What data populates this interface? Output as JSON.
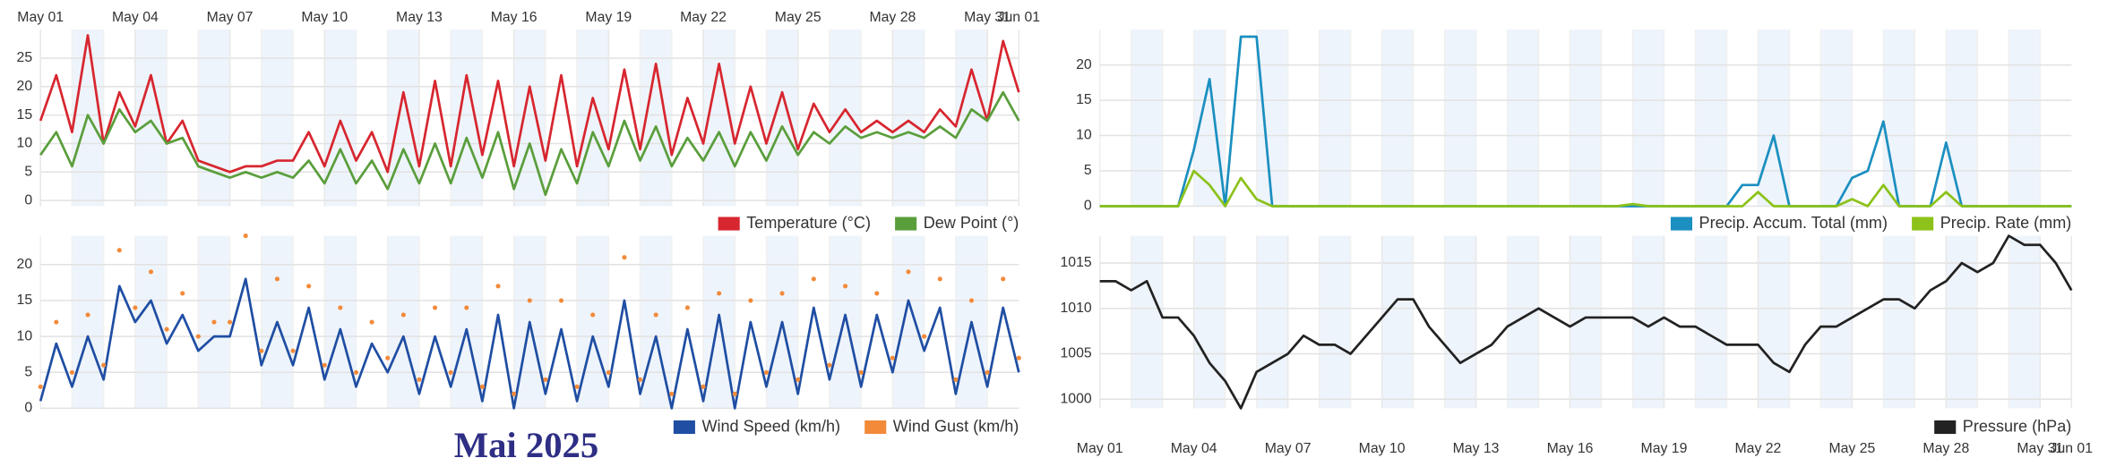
{
  "title": "Mai 2025",
  "chart_data": [
    {
      "type": "line",
      "xlim": [
        0,
        31
      ],
      "ylim": [
        -1,
        30
      ],
      "yticks": [
        0,
        5,
        10,
        15,
        20,
        25
      ],
      "grid": true,
      "xticks": [
        {
          "value": 0,
          "label": "May 01"
        },
        {
          "value": 3,
          "label": "May 04"
        },
        {
          "value": 6,
          "label": "May 07"
        },
        {
          "value": 9,
          "label": "May 10"
        },
        {
          "value": 12,
          "label": "May 13"
        },
        {
          "value": 15,
          "label": "May 16"
        },
        {
          "value": 18,
          "label": "May 19"
        },
        {
          "value": 21,
          "label": "May 22"
        },
        {
          "value": 24,
          "label": "May 25"
        },
        {
          "value": 27,
          "label": "May 28"
        },
        {
          "value": 30,
          "label": "May 31"
        },
        {
          "value": 31,
          "label": "Jun 01"
        }
      ],
      "x": [
        0,
        0.5,
        1,
        1.5,
        2,
        2.5,
        3,
        3.5,
        4,
        4.5,
        5,
        5.5,
        6,
        6.5,
        7,
        7.5,
        8,
        8.5,
        9,
        9.5,
        10,
        10.5,
        11,
        11.5,
        12,
        12.5,
        13,
        13.5,
        14,
        14.5,
        15,
        15.5,
        16,
        16.5,
        17,
        17.5,
        18,
        18.5,
        19,
        19.5,
        20,
        20.5,
        21,
        21.5,
        22,
        22.5,
        23,
        23.5,
        24,
        24.5,
        25,
        25.5,
        26,
        26.5,
        27,
        27.5,
        28,
        28.5,
        29,
        29.5,
        30,
        30.5,
        31
      ],
      "series": [
        {
          "name": "Temperature (°C)",
          "color": "#d7262f",
          "values": [
            14,
            22,
            12,
            29,
            10,
            19,
            13,
            22,
            10,
            14,
            7,
            6,
            5,
            6,
            6,
            7,
            7,
            12,
            6,
            14,
            7,
            12,
            5,
            19,
            6,
            21,
            6,
            22,
            8,
            21,
            6,
            20,
            7,
            22,
            6,
            18,
            9,
            23,
            9,
            24,
            8,
            18,
            10,
            24,
            10,
            20,
            10,
            19,
            9,
            17,
            12,
            16,
            12,
            14,
            12,
            14,
            12,
            16,
            13,
            23,
            14,
            28,
            19
          ]
        },
        {
          "name": "Dew Point (°)",
          "color": "#5a9e3c",
          "values": [
            8,
            12,
            6,
            15,
            10,
            16,
            12,
            14,
            10,
            11,
            6,
            5,
            4,
            5,
            4,
            5,
            4,
            7,
            3,
            9,
            3,
            7,
            2,
            9,
            3,
            10,
            3,
            11,
            4,
            12,
            2,
            10,
            1,
            9,
            3,
            12,
            6,
            14,
            7,
            13,
            6,
            11,
            7,
            12,
            6,
            12,
            7,
            13,
            8,
            12,
            10,
            13,
            11,
            12,
            11,
            12,
            11,
            13,
            11,
            16,
            14,
            19,
            14
          ]
        }
      ]
    },
    {
      "type": "line",
      "xlim": [
        0,
        31
      ],
      "ylim": [
        0,
        24
      ],
      "yticks": [
        0,
        5,
        10,
        15,
        20
      ],
      "grid": true,
      "x": [
        0,
        0.5,
        1,
        1.5,
        2,
        2.5,
        3,
        3.5,
        4,
        4.5,
        5,
        5.5,
        6,
        6.5,
        7,
        7.5,
        8,
        8.5,
        9,
        9.5,
        10,
        10.5,
        11,
        11.5,
        12,
        12.5,
        13,
        13.5,
        14,
        14.5,
        15,
        15.5,
        16,
        16.5,
        17,
        17.5,
        18,
        18.5,
        19,
        19.5,
        20,
        20.5,
        21,
        21.5,
        22,
        22.5,
        23,
        23.5,
        24,
        24.5,
        25,
        25.5,
        26,
        26.5,
        27,
        27.5,
        28,
        28.5,
        29,
        29.5,
        30,
        30.5,
        31
      ],
      "series": [
        {
          "name": "Wind Speed (km/h)",
          "color": "#1f4ea3",
          "values": [
            1,
            9,
            3,
            10,
            4,
            17,
            12,
            15,
            9,
            13,
            8,
            10,
            10,
            18,
            6,
            12,
            6,
            14,
            4,
            11,
            3,
            9,
            5,
            10,
            2,
            10,
            3,
            11,
            1,
            13,
            0,
            12,
            2,
            11,
            1,
            10,
            3,
            15,
            2,
            10,
            0,
            11,
            1,
            13,
            0,
            12,
            3,
            12,
            2,
            14,
            4,
            13,
            3,
            13,
            5,
            15,
            8,
            14,
            2,
            12,
            3,
            14,
            5
          ]
        },
        {
          "name": "Wind Gust (km/h)",
          "color": "#f28a3a",
          "style": "scatter",
          "values": [
            3,
            12,
            5,
            13,
            6,
            22,
            14,
            19,
            11,
            16,
            10,
            12,
            12,
            24,
            8,
            18,
            8,
            17,
            6,
            14,
            5,
            12,
            7,
            13,
            4,
            14,
            5,
            14,
            3,
            17,
            2,
            15,
            4,
            15,
            3,
            13,
            5,
            21,
            4,
            13,
            2,
            14,
            3,
            16,
            2,
            15,
            5,
            16,
            4,
            18,
            6,
            17,
            5,
            16,
            7,
            19,
            10,
            18,
            4,
            15,
            5,
            18,
            7
          ]
        }
      ]
    },
    {
      "type": "line",
      "xlim": [
        0,
        31
      ],
      "ylim": [
        0,
        25
      ],
      "yticks": [
        0,
        5,
        10,
        15,
        20
      ],
      "grid": true,
      "x": [
        0,
        0.5,
        1,
        1.5,
        2,
        2.5,
        3,
        3.5,
        4,
        4.5,
        5,
        5.5,
        6,
        6.5,
        7,
        7.5,
        8,
        8.5,
        9,
        9.5,
        10,
        10.5,
        11,
        11.5,
        12,
        12.5,
        13,
        13.5,
        14,
        14.5,
        15,
        15.5,
        16,
        16.5,
        17,
        17.5,
        18,
        18.5,
        19,
        19.5,
        20,
        20.5,
        21,
        21.5,
        22,
        22.5,
        23,
        23.5,
        24,
        24.5,
        25,
        25.5,
        26,
        26.5,
        27,
        27.5,
        28,
        28.5,
        29,
        29.5,
        30,
        30.5,
        31
      ],
      "series": [
        {
          "name": "Precip. Accum. Total (mm)",
          "color": "#1b8fc0",
          "values": [
            0,
            0,
            0,
            0,
            0,
            0,
            8,
            18,
            0,
            24,
            24,
            0,
            0,
            0,
            0,
            0,
            0,
            0,
            0,
            0,
            0,
            0,
            0,
            0,
            0,
            0,
            0,
            0,
            0,
            0,
            0,
            0,
            0,
            0,
            0,
            0,
            0,
            0,
            0,
            0,
            0,
            3,
            3,
            10,
            0,
            0,
            0,
            0,
            4,
            5,
            12,
            0,
            0,
            0,
            9,
            0,
            0,
            0,
            0,
            0,
            0,
            0,
            0
          ]
        },
        {
          "name": "Precip. Rate (mm)",
          "color": "#8cc21a",
          "values": [
            0,
            0,
            0,
            0,
            0,
            0,
            5,
            3,
            0,
            4,
            1,
            0,
            0,
            0,
            0,
            0,
            0,
            0,
            0,
            0,
            0,
            0,
            0,
            0,
            0,
            0,
            0,
            0,
            0,
            0,
            0,
            0,
            0,
            0,
            0.3,
            0,
            0,
            0,
            0,
            0,
            0,
            0,
            2,
            0,
            0,
            0,
            0,
            0,
            1,
            0,
            3,
            0,
            0,
            0,
            2,
            0,
            0,
            0,
            0,
            0,
            0,
            0,
            0
          ]
        }
      ]
    },
    {
      "type": "line",
      "xlim": [
        0,
        31
      ],
      "ylim": [
        999,
        1018
      ],
      "yticks": [
        1000,
        1005,
        1010,
        1015
      ],
      "grid": true,
      "xticks": [
        {
          "value": 0,
          "label": "May 01"
        },
        {
          "value": 3,
          "label": "May 04"
        },
        {
          "value": 6,
          "label": "May 07"
        },
        {
          "value": 9,
          "label": "May 10"
        },
        {
          "value": 12,
          "label": "May 13"
        },
        {
          "value": 15,
          "label": "May 16"
        },
        {
          "value": 18,
          "label": "May 19"
        },
        {
          "value": 21,
          "label": "May 22"
        },
        {
          "value": 24,
          "label": "May 25"
        },
        {
          "value": 27,
          "label": "May 28"
        },
        {
          "value": 30,
          "label": "May 31"
        },
        {
          "value": 31,
          "label": "Jun 01"
        }
      ],
      "x": [
        0,
        0.5,
        1,
        1.5,
        2,
        2.5,
        3,
        3.5,
        4,
        4.5,
        5,
        5.5,
        6,
        6.5,
        7,
        7.5,
        8,
        8.5,
        9,
        9.5,
        10,
        10.5,
        11,
        11.5,
        12,
        12.5,
        13,
        13.5,
        14,
        14.5,
        15,
        15.5,
        16,
        16.5,
        17,
        17.5,
        18,
        18.5,
        19,
        19.5,
        20,
        20.5,
        21,
        21.5,
        22,
        22.5,
        23,
        23.5,
        24,
        24.5,
        25,
        25.5,
        26,
        26.5,
        27,
        27.5,
        28,
        28.5,
        29,
        29.5,
        30,
        30.5,
        31
      ],
      "series": [
        {
          "name": "Pressure (hPa)",
          "color": "#222222",
          "values": [
            1013,
            1013,
            1012,
            1013,
            1009,
            1009,
            1007,
            1004,
            1002,
            999,
            1003,
            1004,
            1005,
            1007,
            1006,
            1006,
            1005,
            1007,
            1009,
            1011,
            1011,
            1008,
            1006,
            1004,
            1005,
            1006,
            1008,
            1009,
            1010,
            1009,
            1008,
            1009,
            1009,
            1009,
            1009,
            1008,
            1009,
            1008,
            1008,
            1007,
            1006,
            1006,
            1006,
            1004,
            1003,
            1006,
            1008,
            1008,
            1009,
            1010,
            1011,
            1011,
            1010,
            1012,
            1013,
            1015,
            1014,
            1015,
            1018,
            1017,
            1017,
            1015,
            1012
          ]
        }
      ]
    }
  ]
}
